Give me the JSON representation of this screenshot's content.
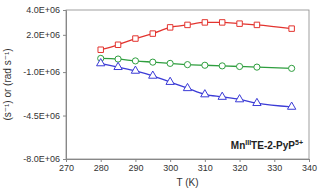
{
  "chart_data": {
    "type": "line",
    "x_label": "T (K)",
    "y_label": "(s⁻¹) or (rad s⁻¹)",
    "annotation": [
      "Mn",
      "III",
      "TE-2-PyP",
      "5+"
    ],
    "x": [
      280,
      285,
      290,
      295,
      300,
      305,
      310,
      315,
      320,
      325,
      335
    ],
    "series": [
      {
        "color": "#e3342f",
        "marker": "square",
        "line_style": "solid",
        "values": [
          800000,
          1200000,
          1700000,
          2100000,
          2600000,
          2800000,
          3000000,
          3000000,
          2900000,
          2800000,
          2500000
        ]
      },
      {
        "color": "#2e9e3e",
        "marker": "circle",
        "line_style": "solid",
        "values": [
          100000,
          50000,
          -100000,
          -200000,
          -300000,
          -400000,
          -450000,
          -500000,
          -550000,
          -600000,
          -700000
        ]
      },
      {
        "color": "#3b3bd6",
        "marker": "triangle",
        "line_style": "solid",
        "values": [
          -300000,
          -600000,
          -900000,
          -1300000,
          -1800000,
          -2300000,
          -2800000,
          -3000000,
          -3200000,
          -3500000,
          -3800000
        ]
      }
    ],
    "xlim": [
      270,
      340
    ],
    "xticks": [
      270,
      280,
      290,
      300,
      310,
      320,
      330,
      340
    ],
    "ylim": [
      -8000000,
      4000000
    ],
    "yticks": [
      {
        "value": -8000000,
        "label": "-8.0E+06"
      },
      {
        "value": -4500000,
        "label": "-4.5E+06"
      },
      {
        "value": -1000000,
        "label": "-1.0E+06"
      },
      {
        "value": 2000000,
        "label": "2.0E+06"
      },
      {
        "value": 4000000,
        "label": "4.0E+06"
      }
    ],
    "grid": false
  }
}
